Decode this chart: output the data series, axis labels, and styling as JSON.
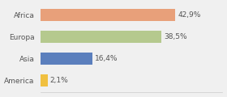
{
  "categories": [
    "Africa",
    "Europa",
    "Asia",
    "America"
  ],
  "values": [
    42.9,
    38.5,
    16.4,
    2.1
  ],
  "labels": [
    "42,9%",
    "38,5%",
    "16,4%",
    "2,1%"
  ],
  "bar_colors": [
    "#e8a07a",
    "#b5c98e",
    "#5b7fbd",
    "#f0c040"
  ],
  "background_color": "#f0f0f0",
  "xlim": [
    0,
    58
  ],
  "label_fontsize": 6.5,
  "category_fontsize": 6.5,
  "bar_height": 0.55
}
